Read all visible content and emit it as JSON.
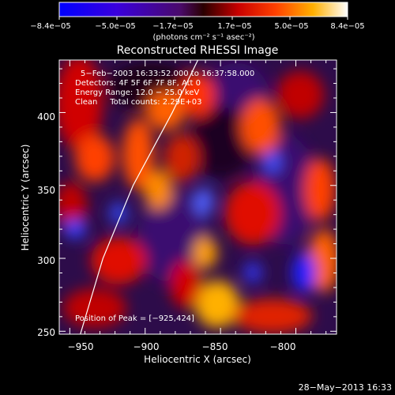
{
  "chart_data": {
    "type": "heatmap",
    "title": "Reconstructed RHESSI Image",
    "xlabel": "Heliocentric X (arcsec)",
    "ylabel": "Heliocentric Y (arcsec)",
    "xlim": [
      -957,
      -773
    ],
    "ylim": [
      248,
      436
    ],
    "xticks": [
      -950,
      -900,
      -850,
      -800
    ],
    "xtick_labels": [
      "−950",
      "−900",
      "−850",
      "−800"
    ],
    "yticks": [
      250,
      300,
      350,
      400
    ],
    "ytick_labels": [
      "250",
      "300",
      "350",
      "400"
    ],
    "colorbar": {
      "min": -8.4e-05,
      "max": 8.4e-05,
      "tick_labels": [
        "−8.4e−05",
        "−5.0e−05",
        "−1.7e−05",
        "1.7e−05",
        "5.0e−05",
        "8.4e−05"
      ],
      "unit_label": "(photons cm⁻² s⁻¹ asec⁻²)"
    },
    "annotations": [
      "5−Feb−2003 16:33:52.000 to 16:37:58.000",
      "Detectors: 4F 5F 6F 7F 8F, Att 0",
      "Energy Range: 12.0 − 25.0 keV",
      "Clean     Total counts: 2.29E+03"
    ],
    "peak_label": "Position of Peak = [−925,424]",
    "peak_position": [
      -925,
      424
    ],
    "limb": [
      [
        -943,
        248
      ],
      [
        -928,
        300
      ],
      [
        -908,
        350
      ],
      [
        -882,
        400
      ],
      [
        -865,
        436
      ]
    ],
    "grid": false,
    "legend": "none"
  },
  "footer": {
    "timestamp": "28−May−2013 16:33"
  },
  "colors": {
    "background": "#000000",
    "foreground": "#ffffff"
  }
}
